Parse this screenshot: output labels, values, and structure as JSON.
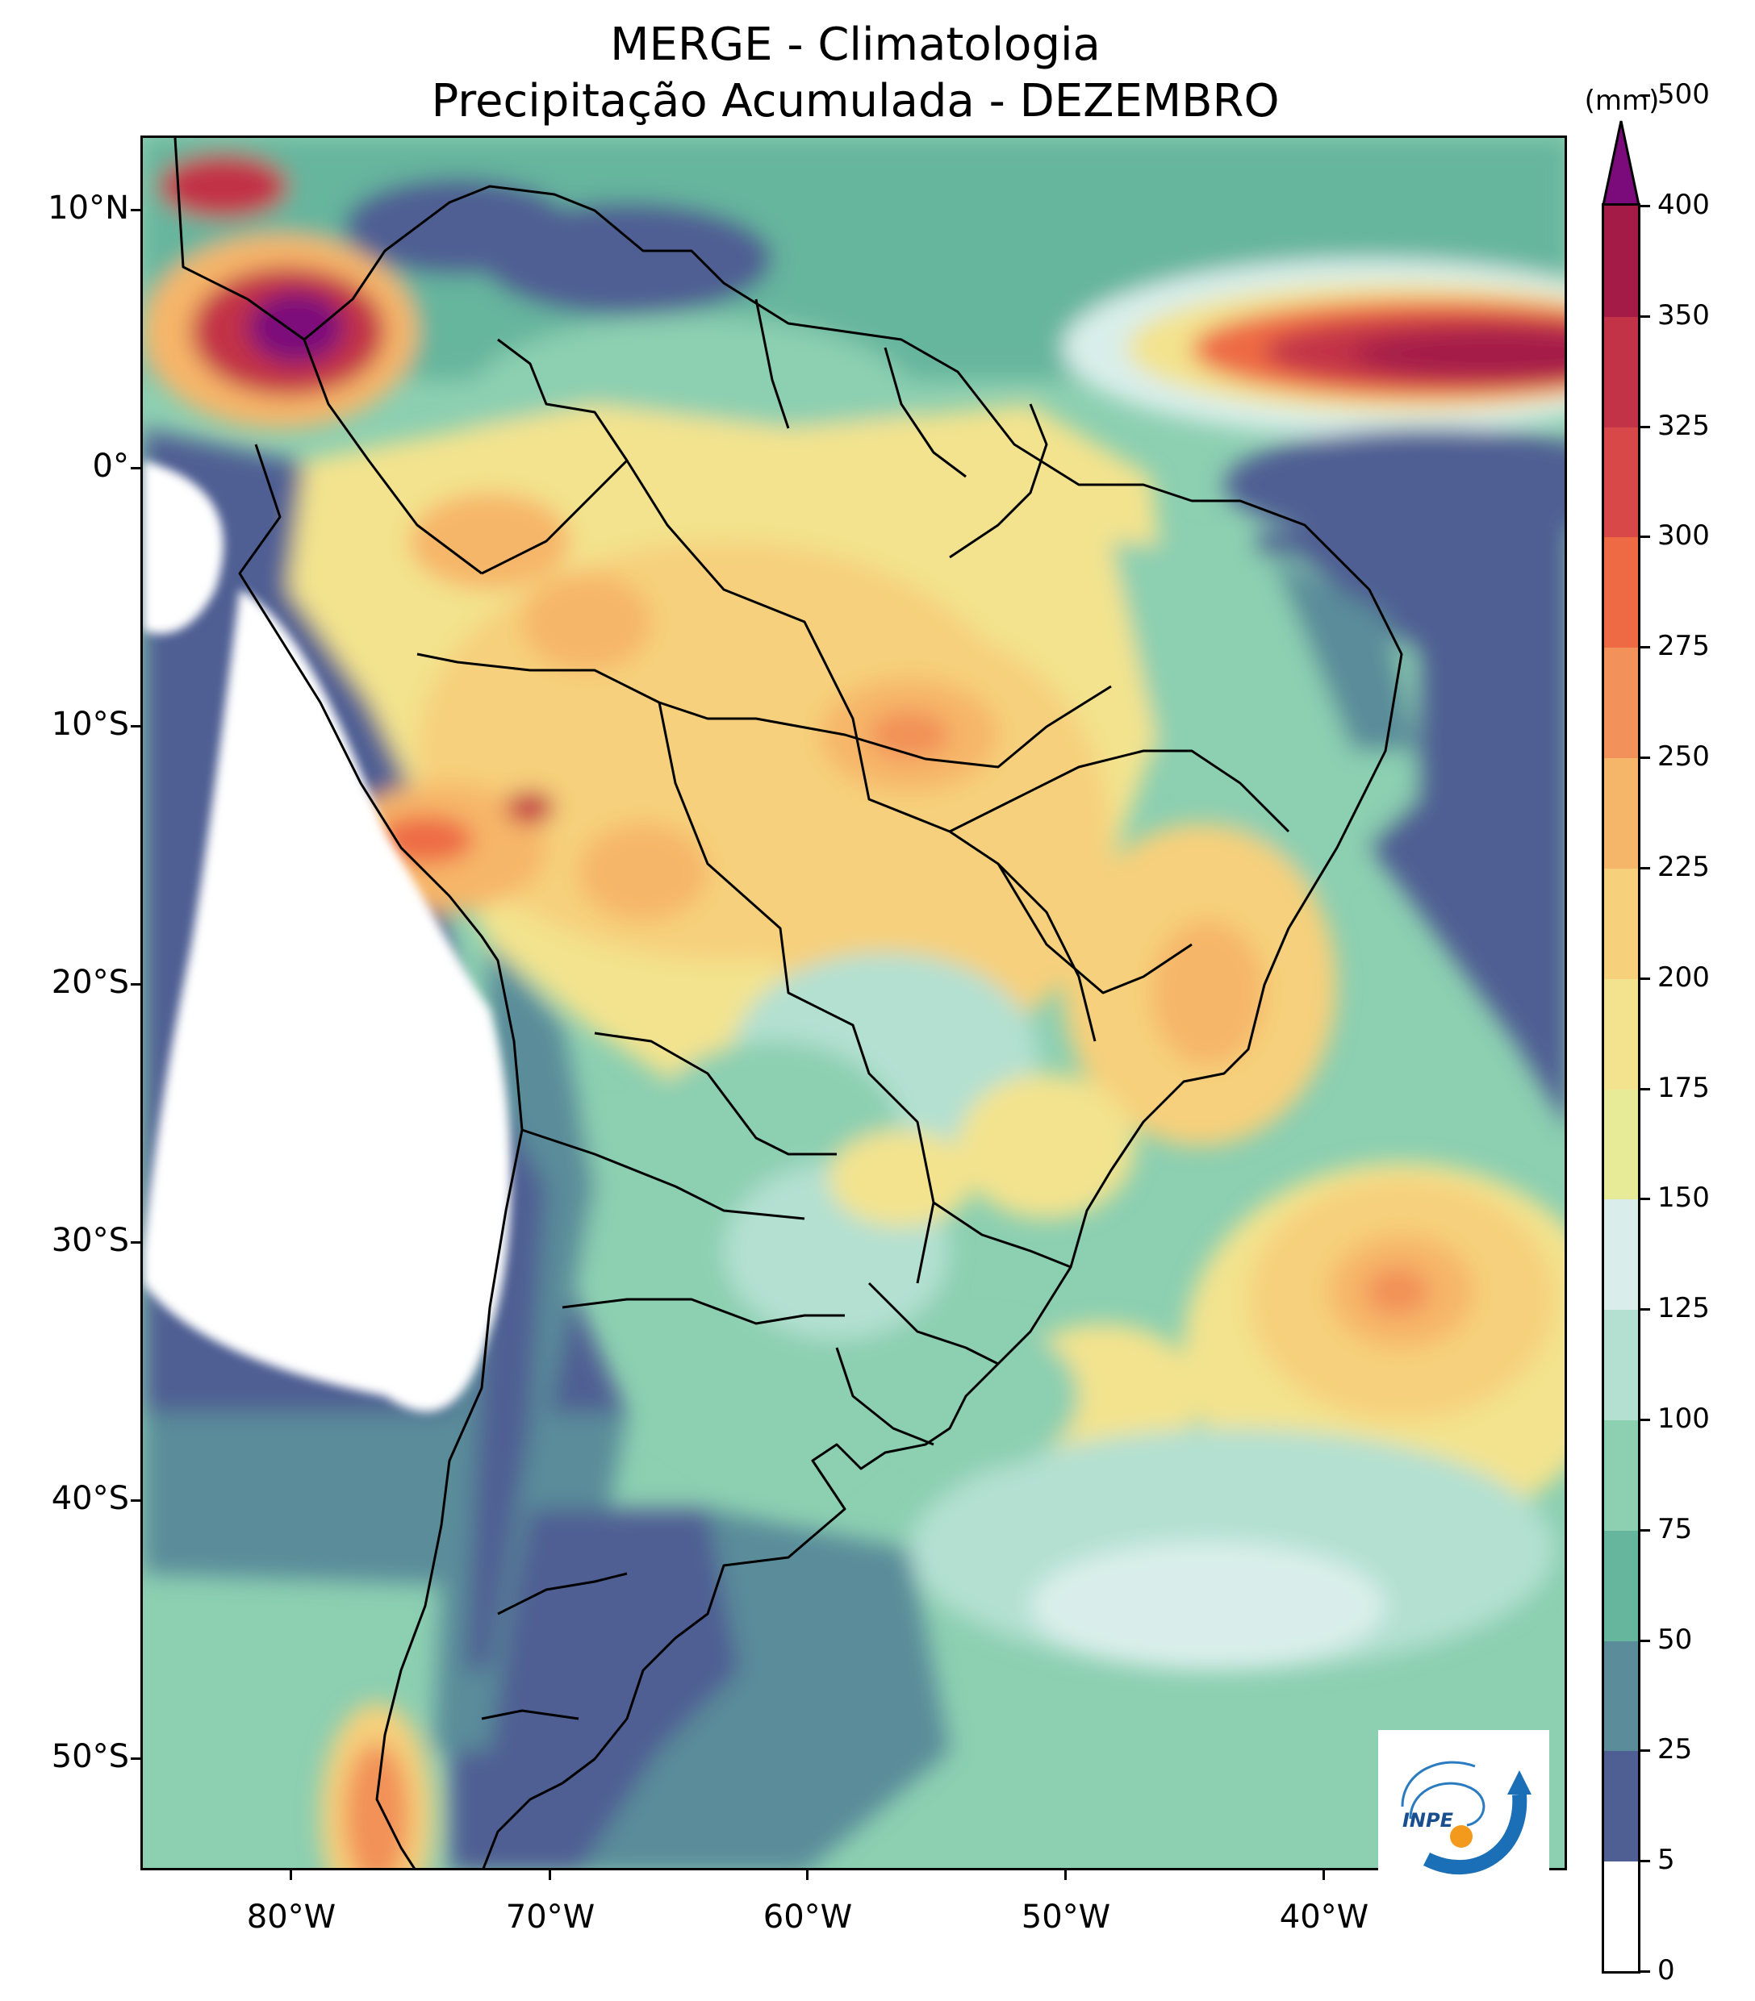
{
  "title": {
    "line1": "MERGE - Climatologia",
    "line2": "Precipitação Acumulada - DEZEMBRO"
  },
  "map": {
    "lat_labels": [
      "10°N",
      "0°",
      "10°S",
      "20°S",
      "30°S",
      "40°S",
      "50°S"
    ],
    "lon_labels": [
      "80°W",
      "70°W",
      "60°W",
      "50°W",
      "40°W"
    ],
    "extent": {
      "lon_min": -85,
      "lon_max": -30.5,
      "lat_min": -56,
      "lat_max": 12.8
    }
  },
  "colorbar": {
    "unit": "(mm)",
    "levels": [
      0,
      5,
      25,
      50,
      75,
      100,
      125,
      150,
      175,
      200,
      225,
      250,
      275,
      300,
      325,
      350,
      400,
      500
    ],
    "labels": [
      "0",
      "5",
      "25",
      "50",
      "75",
      "100",
      "125",
      "150",
      "175",
      "200",
      "225",
      "250",
      "275",
      "300",
      "325",
      "350",
      "400",
      "500"
    ],
    "colors": [
      "#ffffff",
      "#4f5f93",
      "#5a8c9a",
      "#66b59d",
      "#8ccfb1",
      "#b3e0d1",
      "#d9eeea",
      "#e7eb97",
      "#f3e38e",
      "#f6d07b",
      "#f6b669",
      "#f29159",
      "#ee6a45",
      "#d84848",
      "#c23347",
      "#a41b48"
    ],
    "extend_color": "#7b0a7a"
  },
  "logo": {
    "text": "INPE",
    "icon": "inpe-logo-icon"
  }
}
